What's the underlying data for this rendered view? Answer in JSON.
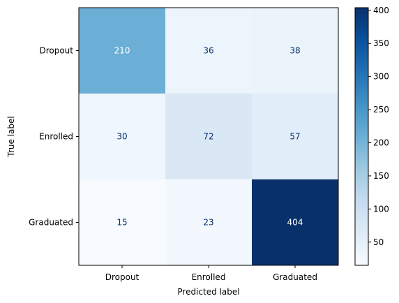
{
  "chart_data": {
    "type": "heatmap",
    "xlabel": "Predicted label",
    "ylabel": "True label",
    "x_categories": [
      "Dropout",
      "Enrolled",
      "Graduated"
    ],
    "y_categories": [
      "Dropout",
      "Enrolled",
      "Graduated"
    ],
    "values": [
      [
        210,
        36,
        38
      ],
      [
        30,
        72,
        57
      ],
      [
        15,
        23,
        404
      ]
    ],
    "colormap": "Blues",
    "colorbar": {
      "min": 15,
      "max": 404,
      "ticks": [
        50,
        100,
        150,
        200,
        250,
        300,
        350,
        400
      ]
    },
    "grid": false,
    "text_color_light": "#ffffff",
    "text_color_dark": "#08306b"
  }
}
